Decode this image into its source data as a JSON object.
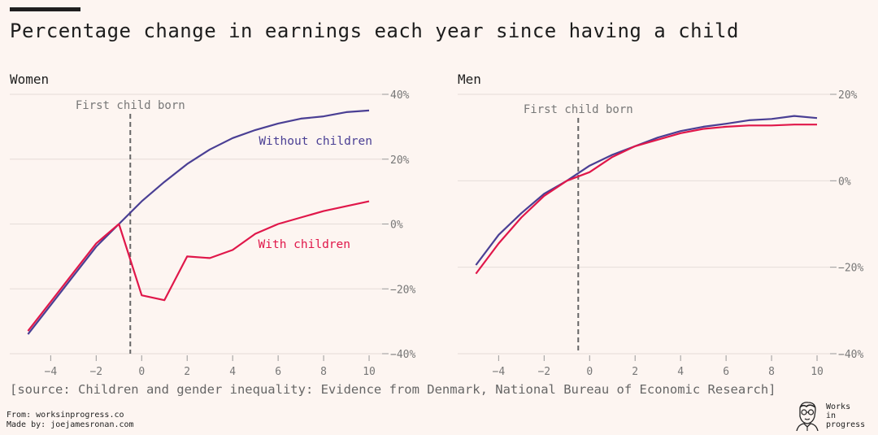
{
  "title": "Percentage change in earnings each year since having a child",
  "source": "[source: Children and gender inequality: Evidence from Denmark, National Bureau of Economic Research]",
  "credits": {
    "from_label": "From:",
    "from_value": "worksinprogress.co",
    "made_label": "Made by:",
    "made_value": "joejamesronan.com"
  },
  "logo": {
    "line1": "Works",
    "line2": "in",
    "line3": "progress"
  },
  "colors": {
    "without": "#4a3f94",
    "with": "#e0174a",
    "grid": "#e5dcd8",
    "marker": "#666666"
  },
  "chart_data": [
    {
      "type": "line",
      "title": "Women",
      "marker_label": "First child born",
      "marker_x": -0.5,
      "x_ticks": [
        -4,
        -2,
        0,
        2,
        4,
        6,
        8,
        10
      ],
      "x_tick_labels": [
        "−4",
        "−2",
        "0",
        "2",
        "4",
        "6",
        "8",
        "10"
      ],
      "xlim": [
        -5.8,
        11
      ],
      "ylim": [
        -40,
        40
      ],
      "y_ticks": [
        40,
        20,
        0,
        -20,
        -40
      ],
      "y_tick_labels": [
        "40%",
        "20%",
        "0%",
        "−20%",
        "−40%"
      ],
      "series": [
        {
          "name": "Without children",
          "x": [
            -5,
            -4,
            -3,
            -2,
            -1,
            0,
            1,
            2,
            3,
            4,
            5,
            6,
            7,
            8,
            9,
            10
          ],
          "values": [
            -34,
            -25,
            -16,
            -7,
            0,
            7,
            13,
            18.5,
            23,
            26.5,
            29,
            31,
            32.5,
            33.2,
            34.5,
            35
          ]
        },
        {
          "name": "With children",
          "x": [
            -5,
            -4,
            -3,
            -2,
            -1,
            0,
            1,
            2,
            3,
            4,
            5,
            6,
            7,
            8,
            9,
            10
          ],
          "values": [
            -33,
            -24,
            -15,
            -6,
            0,
            -22,
            -23.5,
            -10,
            -10.5,
            -8,
            -3,
            0,
            2,
            4,
            5.5,
            7
          ]
        }
      ]
    },
    {
      "type": "line",
      "title": "Men",
      "marker_label": "First child born",
      "marker_x": -0.5,
      "x_ticks": [
        -4,
        -2,
        0,
        2,
        4,
        6,
        8,
        10
      ],
      "x_tick_labels": [
        "−4",
        "−2",
        "0",
        "2",
        "4",
        "6",
        "8",
        "10"
      ],
      "xlim": [
        -5.8,
        11
      ],
      "ylim": [
        -40,
        20
      ],
      "y_ticks": [
        20,
        0,
        -20,
        -40
      ],
      "y_tick_labels": [
        "20%",
        "0%",
        "−20%",
        "−40%"
      ],
      "series": [
        {
          "name": "Without children",
          "x": [
            -5,
            -4,
            -3,
            -2,
            -1,
            0,
            1,
            2,
            3,
            4,
            5,
            6,
            7,
            8,
            9,
            10
          ],
          "values": [
            -19.5,
            -12.5,
            -7.5,
            -3,
            0,
            3.5,
            6,
            8,
            10,
            11.5,
            12.5,
            13.2,
            14,
            14.3,
            15,
            14.5
          ]
        },
        {
          "name": "With children",
          "x": [
            -5,
            -4,
            -3,
            -2,
            -1,
            0,
            1,
            2,
            3,
            4,
            5,
            6,
            7,
            8,
            9,
            10
          ],
          "values": [
            -21.5,
            -14.5,
            -8.5,
            -3.5,
            0,
            2,
            5.5,
            8,
            9.5,
            11,
            12,
            12.5,
            12.8,
            12.8,
            13,
            13
          ]
        }
      ]
    }
  ]
}
